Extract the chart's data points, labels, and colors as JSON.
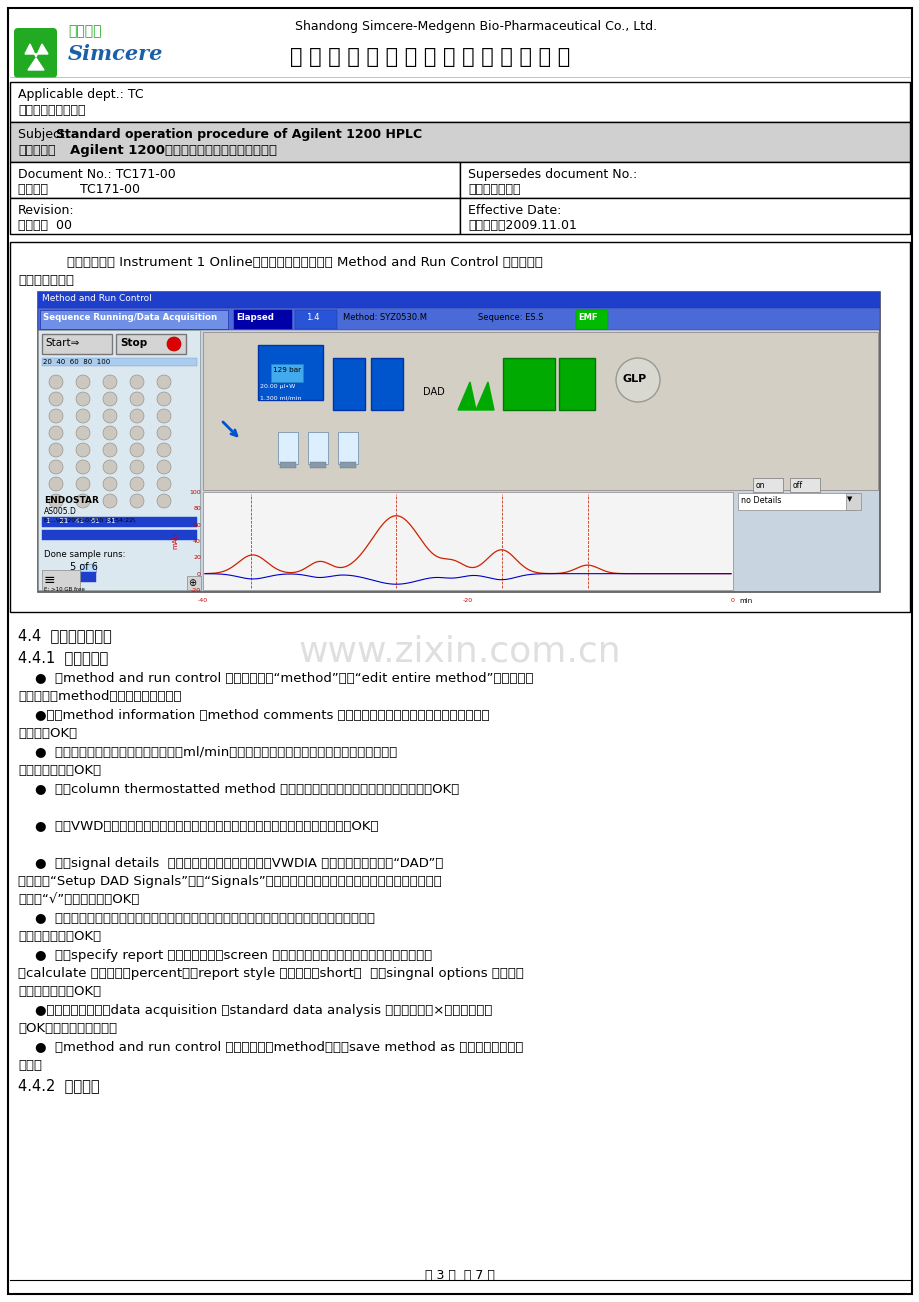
{
  "page_bg": "#ffffff",
  "header_company_en": "Shandong Simcere-Medgenn Bio-Pharmaceutical Co., Ltd.",
  "header_company_cn": "山 东 先 声 麦 得 津 生 物 制 药 有 限 公 司",
  "applicable_dept_en": "Applicable dept.: TC",
  "applicable_dept_cn": "分发部门：技术中心",
  "subject_en_pre": "Subject: ",
  "subject_en_bold": "Standard operation procedure of Agilent 1200 HPLC",
  "subject_cn_pre": "文件名称：",
  "subject_cn_bold": "Agilent 1200型高效液相色谱仪标准操作规程",
  "doc_no_en": "Document No.: TC171-00",
  "doc_no_cn": "文件号：        TC171-00",
  "supersedes_en": "Supersedes document No.:",
  "supersedes_cn": "替代文件号：无",
  "revision_en": "Revision:",
  "revision_cn": "修订号：  00",
  "effective_en": "Effective Date:",
  "effective_cn": "生效日期：2009.11.01",
  "intro_line1": "    双击桌面上的 Instrument 1 Online，计算机进入工作站的 Method and Run Control 操作界面。",
  "intro_line2": "画面如下所示。",
  "section_4_4": "4.4  色谱条件的设定",
  "section_4_4_1": "4.4.1  方法的编辑",
  "b0l1": "    ●  在method and run control 状态下，单击“method”选择“edit entire method”，请先在复",
  "b0l2": "选框中选择method中需要编辑的项目。",
  "b1l1": "    ●进入method information 在method comments 中输入方法的名称及相关描述，参数设置完",
  "b1l2": "毕后单击OK。",
  "b2l1": "    ●  进入泵参数设置画面，设置泵流速（ml/min），流动相组成，冲洗梯度，停针时间等，参数",
  "b2l2": "设置完毕后单击OK。",
  "b3l1": "    ●  进入column thermostatted method 编辑状态，选择柱温筱温度，设置完毕单击OK。",
  "b4l1": "    ●  进入VWD编辑状态，选择方法中所需波长、峰宽、响应时间等，参数设置好单击OK。",
  "b5l1": "    ●  进入signal details  编辑画面，选择下拉菜单中的VWDIA 进行参数设定，点击“DAD”图",
  "b5l2": "标，点击“Setup DAD Signals”，在“Signals”下方的空白处输入所需的检测波长，并在前面的方",
  "b5l3": "框里面“√”设置完毕单击OK。",
  "b6l1": "    ●  进入编辑积分表画面，对所需积分的峰斜率、峰宽、峰高、峰面积、肩峰等参数进行设定，",
  "b6l2": "设定完毕后单击OK。",
  "b7l1": "    ●  进入specify report 编辑画面，单击screen 前的方框，设置报告。使其输出结果到屏幕，",
  "b7l2": "在calculate 选项中选择percent，在report style 选项中选择short，  单击singnal options 设置打印",
  "b7l3": "信号范围，单击OK。",
  "b8l1": "    ●进入时间编辑，在data acquisition 和standard data analysis 的复选框中打×，选择好后单",
  "b8l2": "击OK，则方法编辑完毕。",
  "b9l1": "    ●  在method and run control 状态下，单击method，选择save method as 选项，编辑方法名",
  "b9l2": "存储。",
  "section_4_4_2": "4.4.2  进样操作",
  "footer_text": "第 3 页  共 7 页"
}
